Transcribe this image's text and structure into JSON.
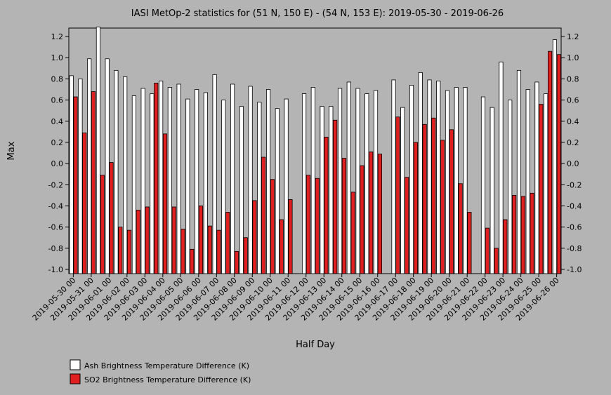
{
  "chart_data": {
    "type": "bar",
    "title": "IASI MetOp-2 statistics for (51 N, 150 E) - (54 N, 153 E): 2019-05-30 - 2019-06-26",
    "xlabel": "Half Day",
    "ylabel": "Max",
    "ylim": [
      -1.04,
      1.28
    ],
    "yticks": [
      -1.0,
      -0.8,
      -0.6,
      -0.4,
      -0.2,
      0.0,
      0.2,
      0.4,
      0.6,
      0.8,
      1.0,
      1.2
    ],
    "ytick_labels": [
      "-1.0",
      "-0.8",
      "-0.6",
      "-0.4",
      "-0.2",
      "0.0",
      "0.2",
      "0.4",
      "0.6",
      "0.8",
      "1.0",
      "1.2"
    ],
    "xtick_labels": [
      "2019-05-30 00",
      "2019-05-31 00",
      "2019-06-01 00",
      "2019-06-02 00",
      "2019-06-03 00",
      "2019-06-04 00",
      "2019-06-05 00",
      "2019-06-06 00",
      "2019-06-07 00",
      "2019-06-08 00",
      "2019-06-09 00",
      "2019-06-10 00",
      "2019-06-11 00",
      "2019-06-12 00",
      "2019-06-13 00",
      "2019-06-14 00",
      "2019-06-15 00",
      "2019-06-16 00",
      "2019-06-17 00",
      "2019-06-18 00",
      "2019-06-19 00",
      "2019-06-20 00",
      "2019-06-21 00",
      "2019-06-22 00",
      "2019-06-23 00",
      "2019-06-24 00",
      "2019-06-25 00",
      "2019-06-26 00"
    ],
    "grid": false,
    "legend_position": "bottom-left",
    "series": [
      {
        "name": "Ash Brightness Temperature Difference (K)",
        "color": "#ffffff",
        "values": [
          0.83,
          0.8,
          0.99,
          1.29,
          0.99,
          0.88,
          0.82,
          0.64,
          0.71,
          0.66,
          0.78,
          0.72,
          0.75,
          0.61,
          0.7,
          0.67,
          0.84,
          0.6,
          0.75,
          0.54,
          0.73,
          0.58,
          0.7,
          0.52,
          0.61,
          null,
          0.66,
          0.72,
          0.54,
          0.54,
          0.71,
          0.77,
          0.71,
          0.66,
          0.69,
          null,
          0.79,
          0.53,
          0.74,
          0.86,
          0.79,
          0.78,
          0.69,
          0.72,
          0.72,
          null,
          0.63,
          0.53,
          0.96,
          0.6,
          0.88,
          0.7,
          0.77,
          0.66,
          1.17
        ]
      },
      {
        "name": "SO2 Brightness Temperature Difference (K)",
        "color": "#e02020",
        "values": [
          0.63,
          0.29,
          0.68,
          -0.11,
          0.01,
          -0.6,
          -0.63,
          -0.44,
          -0.41,
          0.76,
          0.28,
          -0.41,
          -0.62,
          -0.81,
          -0.4,
          -0.59,
          -0.63,
          -0.46,
          -0.83,
          -0.7,
          -0.35,
          0.06,
          -0.15,
          -0.53,
          -0.34,
          null,
          -0.11,
          -0.14,
          0.25,
          0.41,
          0.05,
          -0.27,
          -0.02,
          0.11,
          0.09,
          null,
          0.44,
          -0.13,
          0.2,
          0.37,
          0.43,
          0.22,
          0.32,
          -0.19,
          -0.46,
          null,
          -0.61,
          -0.8,
          -0.53,
          -0.3,
          -0.31,
          -0.28,
          0.56,
          1.06,
          1.03
        ]
      }
    ]
  }
}
